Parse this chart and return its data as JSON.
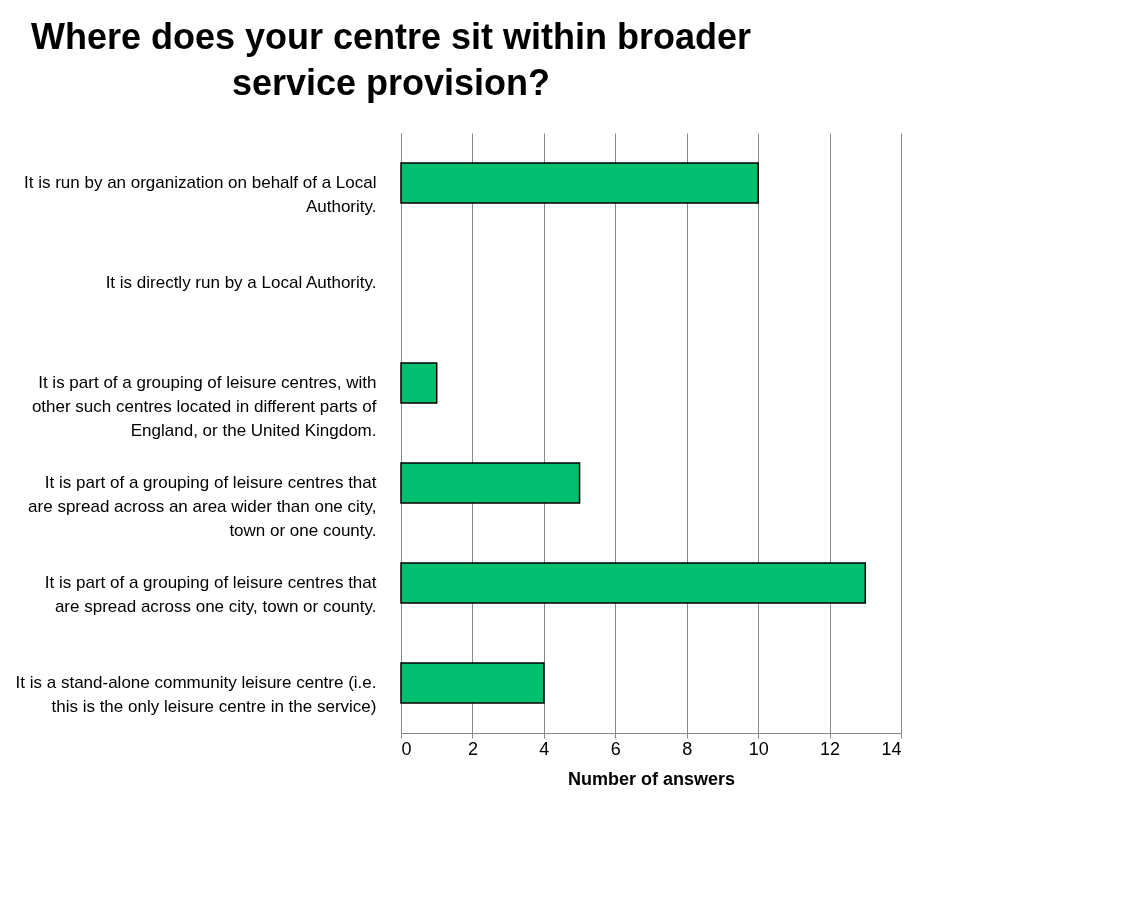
{
  "chart_data": {
    "type": "bar",
    "orientation": "horizontal",
    "title": "Where does your centre sit within broader service provision?",
    "xlabel": "Number of answers",
    "categories": [
      "It is run by an organization on behalf of a Local Authority.",
      "It is directly run by a Local Authority.",
      "It is part of a grouping of leisure centres, with other such centres located in different parts of England, or the United Kingdom.",
      "It is part of a grouping of leisure centres that are spread across an area wider than one city, town or one county.",
      "It is part of a grouping of leisure centres that are spread across one city, town or county.",
      "It is a stand-alone community leisure centre (i.e. this is the only leisure centre in the service)"
    ],
    "values": [
      10,
      0,
      1,
      5,
      13,
      4
    ],
    "color": "#00c070",
    "xlim": [
      0,
      14
    ],
    "xticks": [
      0,
      2,
      4,
      6,
      8,
      10,
      12,
      14
    ],
    "grid": "x"
  }
}
